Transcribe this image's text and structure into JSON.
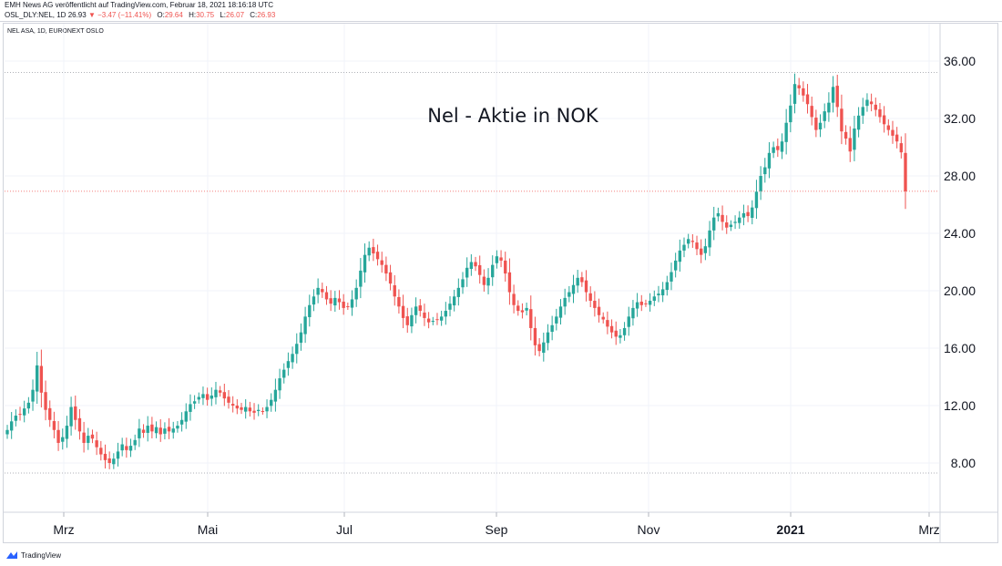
{
  "header": {
    "line1": "EMH News AG veröffentlicht auf TradingView.com, Februar 18, 2021 18:16:18 UTC",
    "symbol": "OSL_DLY:NEL, 1D",
    "last": "26.93",
    "change": "−3.47 (−11.41%)",
    "o_label": "O:",
    "o_value": "29.64",
    "h_label": "H:",
    "h_value": "30.75",
    "l_label": "L:",
    "l_value": "26.07",
    "c_label": "C:",
    "c_value": "26.93"
  },
  "symbol_title": "NEL ASA, 1D, EURONEXT OSLO",
  "footer": {
    "brand": "TradingView",
    "icon": "tradingview-logo-icon"
  },
  "colors": {
    "up": "#26a69a",
    "down": "#ef5350",
    "grid": "#f0f3fa",
    "axis_text": "#131722"
  },
  "chart_data": {
    "type": "candlestick",
    "title": "Nel - Aktie in NOK",
    "ylim": [
      4.5,
      38.5
    ],
    "y_ticks": [
      "8.00",
      "12.00",
      "16.00",
      "20.00",
      "24.00",
      "28.00",
      "32.00",
      "36.00"
    ],
    "x_labels": [
      "Mrz",
      "Mai",
      "Jul",
      "Sep",
      "Nov",
      "2021",
      "Mrz"
    ],
    "last_price_line": 26.93,
    "reference_lines": [
      35.2,
      7.3
    ],
    "grid": true,
    "series": [
      {
        "values": [
          10.3,
          10.9,
          11.3,
          11.4,
          11.8,
          12.2,
          13.1,
          14.8,
          12.9,
          11.7
        ]
      },
      {
        "values": [
          11.0,
          10.3,
          9.4,
          9.8,
          10.6,
          11.9,
          11.0,
          10.2,
          9.4,
          9.9
        ]
      },
      {
        "values": [
          9.7,
          9.1,
          8.6,
          8.2,
          8.0,
          8.3,
          8.8,
          9.3,
          8.9,
          9.2
        ]
      },
      {
        "values": [
          9.6,
          10.4,
          10.1,
          10.6,
          10.2,
          10.5,
          10.0,
          10.4,
          10.2,
          10.4
        ]
      },
      {
        "values": [
          10.6,
          11.0,
          11.6,
          12.1,
          12.3,
          12.6,
          12.8,
          12.4,
          12.7,
          13.1
        ]
      },
      {
        "values": [
          12.9,
          12.5,
          12.2,
          12.0,
          11.8,
          11.7,
          11.9,
          11.6,
          11.5,
          11.7
        ]
      },
      {
        "values": [
          11.6,
          11.9,
          12.4,
          13.1,
          13.9,
          14.5,
          15.1,
          15.6,
          16.3,
          17.1
        ]
      },
      {
        "values": [
          18.2,
          19.0,
          19.6,
          20.2,
          19.9,
          19.4,
          19.1,
          19.5,
          19.2,
          18.8
        ]
      },
      {
        "values": [
          18.9,
          19.4,
          20.2,
          21.4,
          22.5,
          23.0,
          22.6,
          22.2,
          21.8,
          21.2
        ]
      },
      {
        "values": [
          20.5,
          19.6,
          18.9,
          18.1,
          17.6,
          18.3,
          18.9,
          18.6,
          18.1,
          17.8
        ]
      },
      {
        "values": [
          17.9,
          18.0,
          18.2,
          18.6,
          19.1,
          19.6,
          20.2,
          20.8,
          21.6,
          22.0
        ]
      },
      {
        "values": [
          21.7,
          21.1,
          20.4,
          20.9,
          21.8,
          22.4,
          22.1,
          21.2,
          19.9,
          19.0
        ]
      },
      {
        "values": [
          18.6,
          18.5,
          18.8,
          17.4,
          16.2,
          15.8,
          16.4,
          17.1,
          17.6,
          18.2
        ]
      },
      {
        "values": [
          18.9,
          19.5,
          19.9,
          20.4,
          20.9,
          20.6,
          19.9,
          19.3,
          18.8,
          18.3
        ]
      },
      {
        "values": [
          18.0,
          17.5,
          17.1,
          16.8,
          16.9,
          17.4,
          18.2,
          18.8,
          19.2,
          19.0
        ]
      },
      {
        "values": [
          19.1,
          19.3,
          19.6,
          19.8,
          20.1,
          20.6,
          21.3,
          22.1,
          22.8,
          23.2
        ]
      },
      {
        "values": [
          23.6,
          23.4,
          22.9,
          22.5,
          23.1,
          24.2,
          25.1,
          25.4,
          24.8,
          24.4
        ]
      },
      {
        "values": [
          24.6,
          24.8,
          25.1,
          25.4,
          25.2,
          25.8,
          26.9,
          28.0,
          28.6,
          29.6
        ]
      },
      {
        "values": [
          30.0,
          29.8,
          30.4,
          31.7,
          32.9,
          34.4,
          34.1,
          33.6,
          33.0,
          32.1
        ]
      },
      {
        "values": [
          31.2,
          31.7,
          32.5,
          33.1,
          34.2,
          32.8,
          31.1,
          30.6,
          29.7,
          31.3
        ]
      },
      {
        "values": [
          32.2,
          32.8,
          33.3,
          33.0,
          32.6,
          32.1,
          31.6,
          31.2,
          30.8,
          30.4
        ]
      },
      {
        "values": [
          29.64,
          26.93
        ]
      }
    ]
  }
}
